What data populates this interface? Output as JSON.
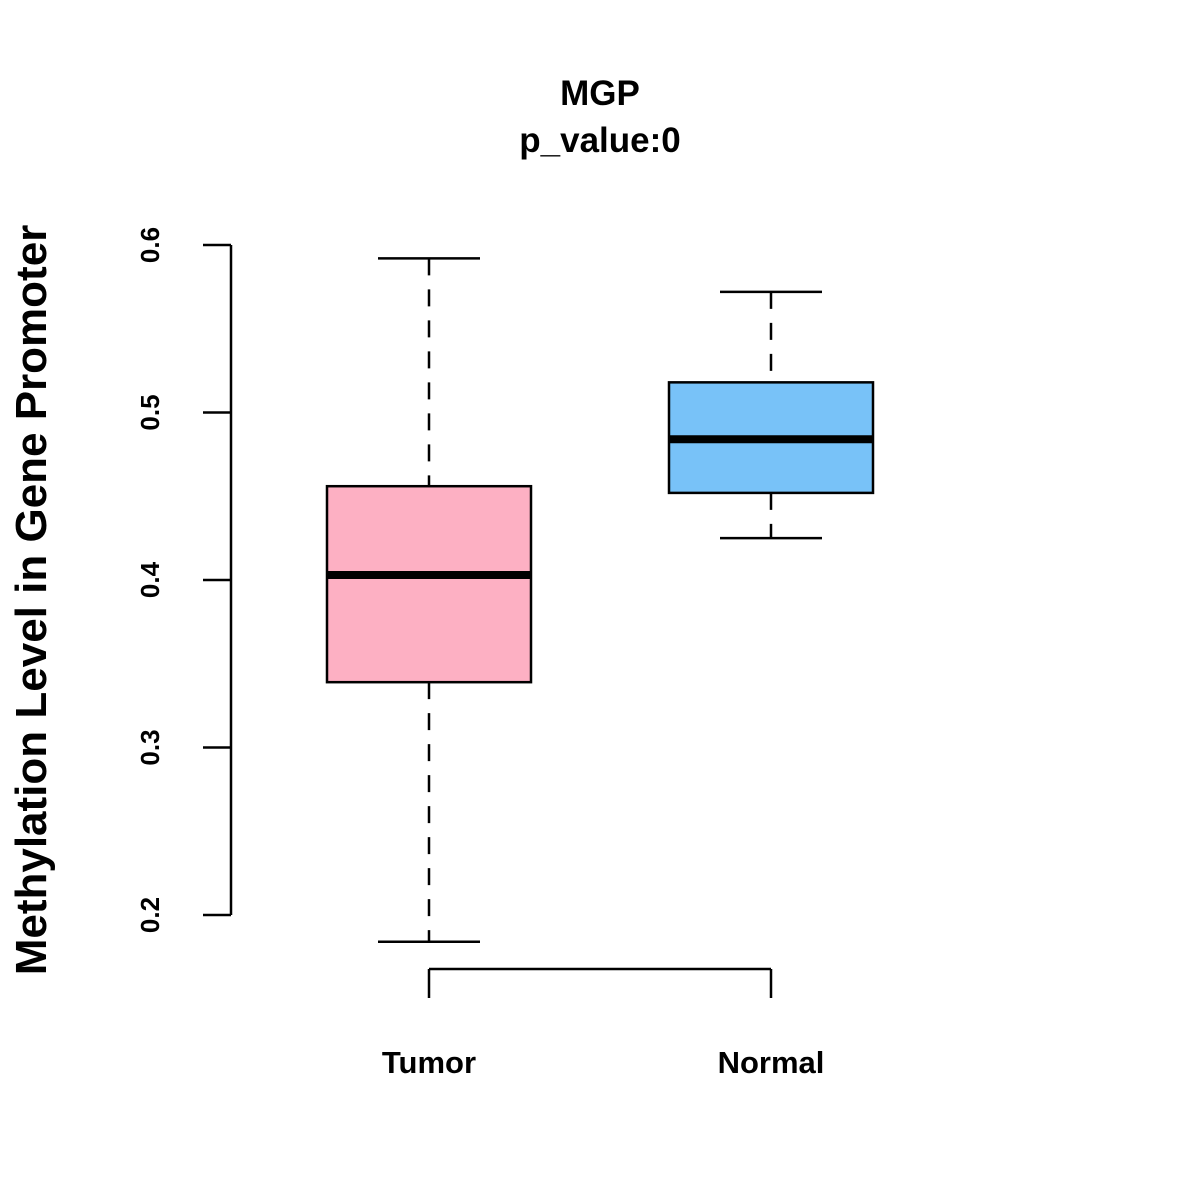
{
  "chart_data": {
    "type": "boxplot",
    "title": "MGP",
    "subtitle": "p_value:0",
    "ylabel": "Methylation Level in Gene Promoter",
    "xlabel": "",
    "ylim": [
      0.2,
      0.6
    ],
    "yticks": [
      0.2,
      0.3,
      0.4,
      0.5,
      0.6
    ],
    "ytick_labels": [
      "0.2",
      "0.3",
      "0.4",
      "0.5",
      "0.6"
    ],
    "categories": [
      "Tumor",
      "Normal"
    ],
    "series": [
      {
        "name": "Tumor",
        "color": "#FDB0C3",
        "whisker_low": 0.184,
        "q1": 0.339,
        "median": 0.403,
        "q3": 0.456,
        "whisker_high": 0.592
      },
      {
        "name": "Normal",
        "color": "#78C2F8",
        "whisker_low": 0.425,
        "q1": 0.452,
        "median": 0.484,
        "q3": 0.518,
        "whisker_high": 0.572
      }
    ],
    "grid": false,
    "legend": "none"
  }
}
